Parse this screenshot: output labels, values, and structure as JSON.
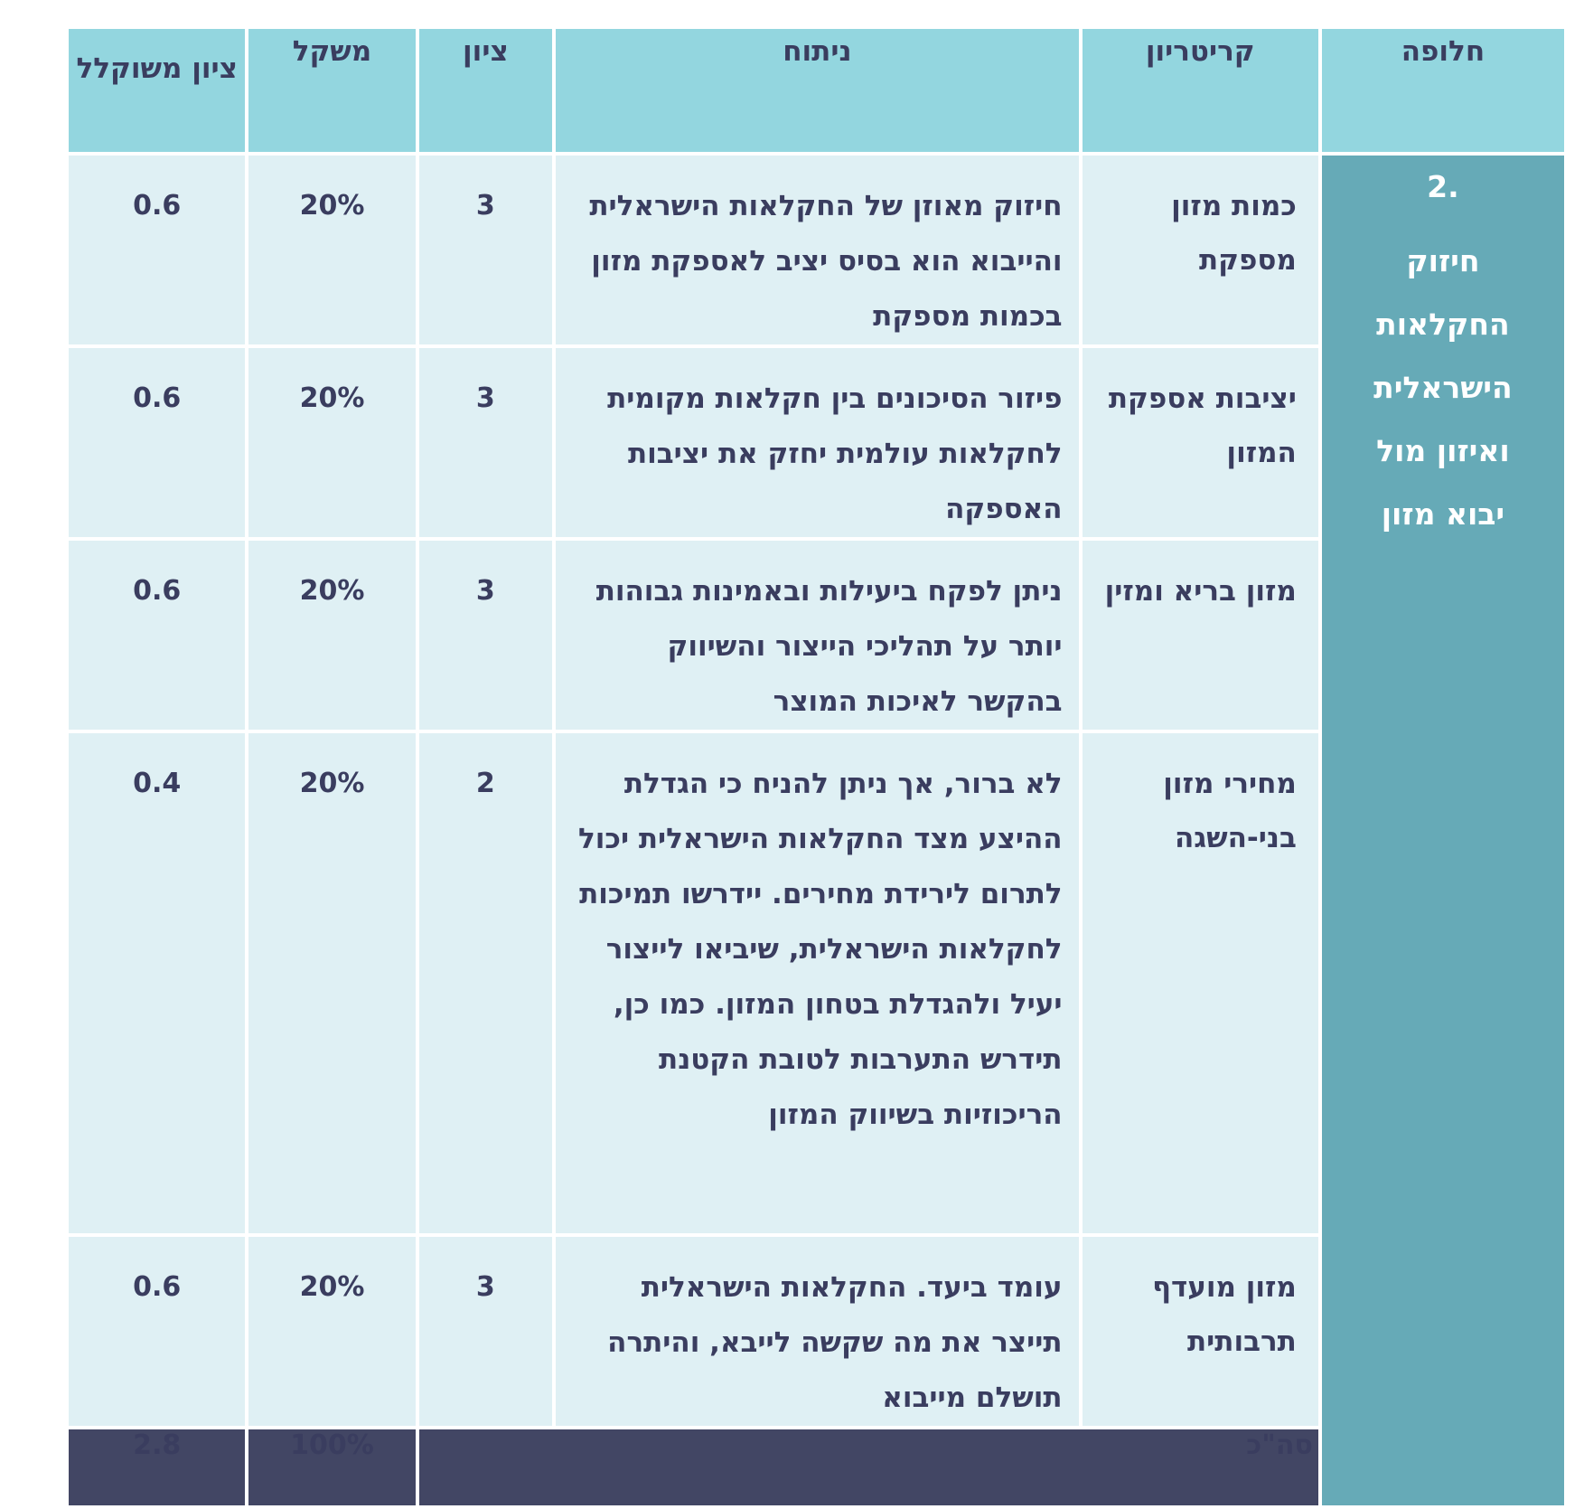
{
  "headers": {
    "alternative": "חלופה",
    "criterion": "קריטריון",
    "analysis": "ניתוח",
    "score": "ציון",
    "weight": "משקל",
    "weighted_score": "ציון משוקלל"
  },
  "alternative": {
    "number": "2.",
    "title": "חיזוק החקלאות הישראלית ואיזון מול יבוא מזון"
  },
  "rows": [
    {
      "criterion": "כמות מזון מספקת",
      "analysis": "חיזוק מאוזן של החקלאות הישראלית והייבוא הוא בסיס יציב לאספקת מזון בכמות מספקת",
      "score": "3",
      "weight": "20%",
      "weighted": "0.6"
    },
    {
      "criterion": "יציבות אספקת המזון",
      "analysis": "פיזור הסיכונים בין חקלאות מקומית לחקלאות עולמית יחזק את יציבות האספקה",
      "score": "3",
      "weight": "20%",
      "weighted": "0.6"
    },
    {
      "criterion": "מזון בריא ומזין",
      "analysis": "ניתן לפקח ביעילות ובאמינות גבוהות יותר על תהליכי הייצור והשיווק בהקשר לאיכות המוצר",
      "score": "3",
      "weight": "20%",
      "weighted": "0.6"
    },
    {
      "criterion": "מחירי מזון בני-השגה",
      "analysis": "לא ברור, אך ניתן להניח כי הגדלת ההיצע מצד החקלאות הישראלית יכול לתרום לירידת מחירים. יידרשו תמיכות לחקלאות הישראלית, שיביאו לייצור יעיל ולהגדלת בטחון המזון. כמו כן, תידרש התערבות לטובת הקטנת הריכוזיות בשיווק המזון",
      "score": "2",
      "weight": "20%",
      "weighted": "0.4"
    },
    {
      "criterion": "מזון מועדף תרבותית",
      "analysis": "עומד ביעד. החקלאות הישראלית תייצר את מה שקשה לייבא, והיתרה תושלם מייבוא",
      "score": "3",
      "weight": "20%",
      "weighted": "0.6"
    }
  ],
  "total": {
    "label": "סה\"כ",
    "weight": "100%",
    "weighted": "2.8"
  },
  "colors": {
    "header_bg": "#93d6df",
    "cell_bg": "#dff0f4",
    "alternative_bg": "#66aab7",
    "total_bg": "#424664",
    "text": "#3a3d5f"
  }
}
